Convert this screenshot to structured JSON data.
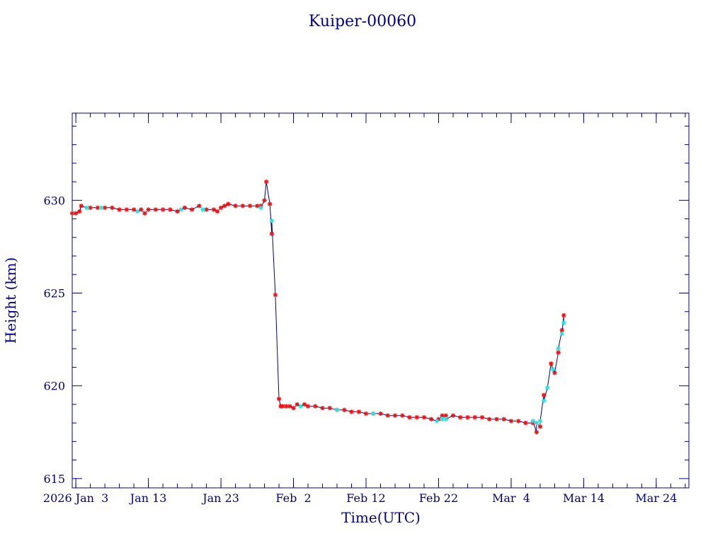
{
  "chart_data": {
    "type": "scatter",
    "title": "Kuiper-00060",
    "xlabel": "Time(UTC)",
    "ylabel": "Height (km)",
    "x_unit": "date (2026, UTC)",
    "xlim": [
      "2026-01-02T12:00",
      "2026-03-28T12:00"
    ],
    "ylim": [
      614.5,
      634.7
    ],
    "x_ticks": [
      {
        "date": "2026-01-03",
        "label": "2026 Jan  3"
      },
      {
        "date": "2026-01-13",
        "label": "Jan 13"
      },
      {
        "date": "2026-01-23",
        "label": "Jan 23"
      },
      {
        "date": "2026-02-02",
        "label": "Feb  2"
      },
      {
        "date": "2026-02-12",
        "label": "Feb 12"
      },
      {
        "date": "2026-02-22",
        "label": "Feb 22"
      },
      {
        "date": "2026-03-04",
        "label": "Mar  4"
      },
      {
        "date": "2026-03-14",
        "label": "Mar 14"
      },
      {
        "date": "2026-03-24",
        "label": "Mar 24"
      }
    ],
    "y_ticks": [
      615,
      620,
      625,
      630
    ],
    "grid": false,
    "colors": {
      "text": "#00008b",
      "line": "#00008b",
      "marker_primary": "#ee1111",
      "marker_secondary": "#33dddd"
    },
    "series": [
      {
        "marker": "red star",
        "points": [
          [
            "2026-01-02T12:00",
            629.3
          ],
          [
            "2026-01-03T00:00",
            629.3
          ],
          [
            "2026-01-03T12:00",
            629.4
          ],
          [
            "2026-01-03T18:00",
            629.7
          ],
          [
            "2026-01-05T00:00",
            629.6
          ],
          [
            "2026-01-06T00:00",
            629.6
          ],
          [
            "2026-01-07T00:00",
            629.6
          ],
          [
            "2026-01-08T00:00",
            629.6
          ],
          [
            "2026-01-09T00:00",
            629.5
          ],
          [
            "2026-01-10T00:00",
            629.5
          ],
          [
            "2026-01-11T00:00",
            629.5
          ],
          [
            "2026-01-12T00:00",
            629.5
          ],
          [
            "2026-01-12T12:00",
            629.3
          ],
          [
            "2026-01-13T00:00",
            629.5
          ],
          [
            "2026-01-14T00:00",
            629.5
          ],
          [
            "2026-01-15T00:00",
            629.5
          ],
          [
            "2026-01-16T00:00",
            629.5
          ],
          [
            "2026-01-17T00:00",
            629.4
          ],
          [
            "2026-01-18T00:00",
            629.6
          ],
          [
            "2026-01-19T00:00",
            629.5
          ],
          [
            "2026-01-20T00:00",
            629.7
          ],
          [
            "2026-01-21T00:00",
            629.5
          ],
          [
            "2026-01-22T00:00",
            629.5
          ],
          [
            "2026-01-22T12:00",
            629.4
          ],
          [
            "2026-01-23T00:00",
            629.6
          ],
          [
            "2026-01-23T12:00",
            629.7
          ],
          [
            "2026-01-24T00:00",
            629.8
          ],
          [
            "2026-01-25T00:00",
            629.7
          ],
          [
            "2026-01-26T00:00",
            629.7
          ],
          [
            "2026-01-27T00:00",
            629.7
          ],
          [
            "2026-01-28T00:00",
            629.7
          ],
          [
            "2026-01-28T12:00",
            629.7
          ],
          [
            "2026-01-29T00:00",
            630.0
          ],
          [
            "2026-01-29T06:00",
            631.0
          ],
          [
            "2026-01-29T18:00",
            629.8
          ],
          [
            "2026-01-30T00:00",
            628.2
          ],
          [
            "2026-01-30T12:00",
            624.9
          ],
          [
            "2026-01-31T00:00",
            619.3
          ],
          [
            "2026-01-31T06:00",
            618.9
          ],
          [
            "2026-01-31T12:00",
            618.9
          ],
          [
            "2026-02-01T00:00",
            618.9
          ],
          [
            "2026-02-01T12:00",
            618.9
          ],
          [
            "2026-02-02T00:00",
            618.8
          ],
          [
            "2026-02-02T12:00",
            619.0
          ],
          [
            "2026-02-03T12:00",
            619.0
          ],
          [
            "2026-02-04T00:00",
            618.9
          ],
          [
            "2026-02-05T00:00",
            618.9
          ],
          [
            "2026-02-06T00:00",
            618.8
          ],
          [
            "2026-02-07T00:00",
            618.8
          ],
          [
            "2026-02-08T00:00",
            618.7
          ],
          [
            "2026-02-09T00:00",
            618.7
          ],
          [
            "2026-02-10T00:00",
            618.6
          ],
          [
            "2026-02-11T00:00",
            618.6
          ],
          [
            "2026-02-12T00:00",
            618.5
          ],
          [
            "2026-02-13T00:00",
            618.5
          ],
          [
            "2026-02-14T00:00",
            618.5
          ],
          [
            "2026-02-15T00:00",
            618.4
          ],
          [
            "2026-02-16T00:00",
            618.4
          ],
          [
            "2026-02-17T00:00",
            618.4
          ],
          [
            "2026-02-18T00:00",
            618.3
          ],
          [
            "2026-02-19T00:00",
            618.3
          ],
          [
            "2026-02-20T00:00",
            618.3
          ],
          [
            "2026-02-21T00:00",
            618.2
          ],
          [
            "2026-02-22T00:00",
            618.2
          ],
          [
            "2026-02-22T12:00",
            618.4
          ],
          [
            "2026-02-23T00:00",
            618.4
          ],
          [
            "2026-02-24T00:00",
            618.4
          ],
          [
            "2026-02-25T00:00",
            618.3
          ],
          [
            "2026-02-26T00:00",
            618.3
          ],
          [
            "2026-02-27T00:00",
            618.3
          ],
          [
            "2026-02-28T00:00",
            618.3
          ],
          [
            "2026-03-01T00:00",
            618.2
          ],
          [
            "2026-03-02T00:00",
            618.2
          ],
          [
            "2026-03-03T00:00",
            618.2
          ],
          [
            "2026-03-04T00:00",
            618.1
          ],
          [
            "2026-03-05T00:00",
            618.1
          ],
          [
            "2026-03-06T00:00",
            618.0
          ],
          [
            "2026-03-07T00:00",
            618.0
          ],
          [
            "2026-03-07T12:00",
            617.5
          ],
          [
            "2026-03-08T00:00",
            617.8
          ],
          [
            "2026-03-08T12:00",
            619.5
          ],
          [
            "2026-03-09T12:00",
            621.2
          ],
          [
            "2026-03-10T00:00",
            620.7
          ],
          [
            "2026-03-10T12:00",
            621.8
          ],
          [
            "2026-03-11T00:00",
            623.0
          ],
          [
            "2026-03-11T06:00",
            623.8
          ]
        ]
      },
      {
        "marker": "cyan star",
        "points": [
          [
            "2026-01-04T12:00",
            629.6
          ],
          [
            "2026-01-06T12:00",
            629.6
          ],
          [
            "2026-01-11T12:00",
            629.4
          ],
          [
            "2026-01-17T12:00",
            629.5
          ],
          [
            "2026-01-20T12:00",
            629.5
          ],
          [
            "2026-01-28T12:00",
            629.6
          ],
          [
            "2026-01-30T00:00",
            628.9
          ],
          [
            "2026-02-03T00:00",
            618.9
          ],
          [
            "2026-02-08T00:00",
            618.7
          ],
          [
            "2026-02-13T00:00",
            618.5
          ],
          [
            "2026-02-21T18:00",
            618.1
          ],
          [
            "2026-02-22T12:00",
            618.2
          ],
          [
            "2026-02-23T00:00",
            618.2
          ],
          [
            "2026-03-07T00:00",
            618.1
          ],
          [
            "2026-03-07T12:00",
            618.0
          ],
          [
            "2026-03-08T00:00",
            618.1
          ],
          [
            "2026-03-08T12:00",
            619.2
          ],
          [
            "2026-03-09T00:00",
            619.9
          ],
          [
            "2026-03-09T18:00",
            620.9
          ],
          [
            "2026-03-10T12:00",
            622.0
          ],
          [
            "2026-03-11T00:00",
            622.8
          ],
          [
            "2026-03-11T06:00",
            623.4
          ]
        ]
      }
    ]
  }
}
